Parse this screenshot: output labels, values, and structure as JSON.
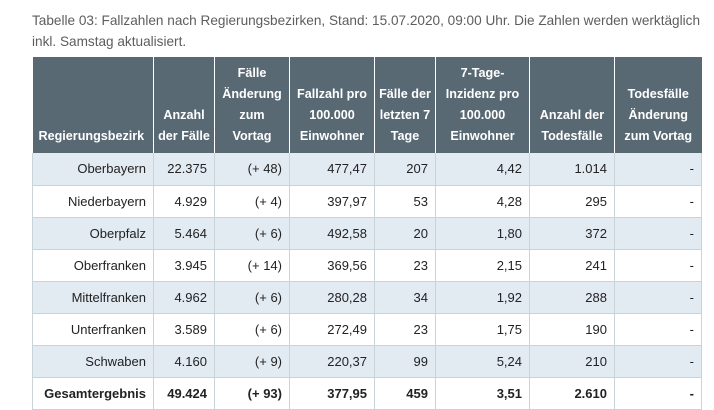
{
  "caption": "Tabelle 03: Fallzahlen nach Regierungsbezirken, Stand: 15.07.2020, 09:00 Uhr. Die Zahlen werden werktäglich inkl. Samstag aktualisiert.",
  "table": {
    "headers": [
      "Regierungsbezirk",
      "Anzahl der Fälle",
      "Fälle Änderung zum Vortag",
      "Fallzahl pro 100.000 Einwohner",
      "Fälle der letzten 7 Tage",
      "7-Tage-Inzidenz pro 100.000 Einwohner",
      "Anzahl der Todesfälle",
      "Todesfälle Änderung zum Vortag"
    ],
    "rows": [
      [
        "Oberbayern",
        "22.375",
        "(+ 48)",
        "477,47",
        "207",
        "4,42",
        "1.014",
        "-"
      ],
      [
        "Niederbayern",
        "4.929",
        "(+ 4)",
        "397,97",
        "53",
        "4,28",
        "295",
        "-"
      ],
      [
        "Oberpfalz",
        "5.464",
        "(+ 6)",
        "492,58",
        "20",
        "1,80",
        "372",
        "-"
      ],
      [
        "Oberfranken",
        "3.945",
        "(+ 14)",
        "369,56",
        "23",
        "2,15",
        "241",
        "-"
      ],
      [
        "Mittelfranken",
        "4.962",
        "(+ 6)",
        "280,28",
        "34",
        "1,92",
        "288",
        "-"
      ],
      [
        "Unterfranken",
        "3.589",
        "(+ 6)",
        "272,49",
        "23",
        "1,75",
        "190",
        "-"
      ],
      [
        "Schwaben",
        "4.160",
        "(+ 9)",
        "220,37",
        "99",
        "5,24",
        "210",
        "-"
      ]
    ],
    "total": [
      "Gesamtergebnis",
      "49.424",
      "(+ 93)",
      "377,95",
      "459",
      "3,51",
      "2.610",
      "-"
    ]
  },
  "colors": {
    "header_bg": "#596974",
    "row_alt_bg": "#e3ebf2",
    "border": "#c9d3da",
    "caption_text": "#5d5d5d"
  }
}
